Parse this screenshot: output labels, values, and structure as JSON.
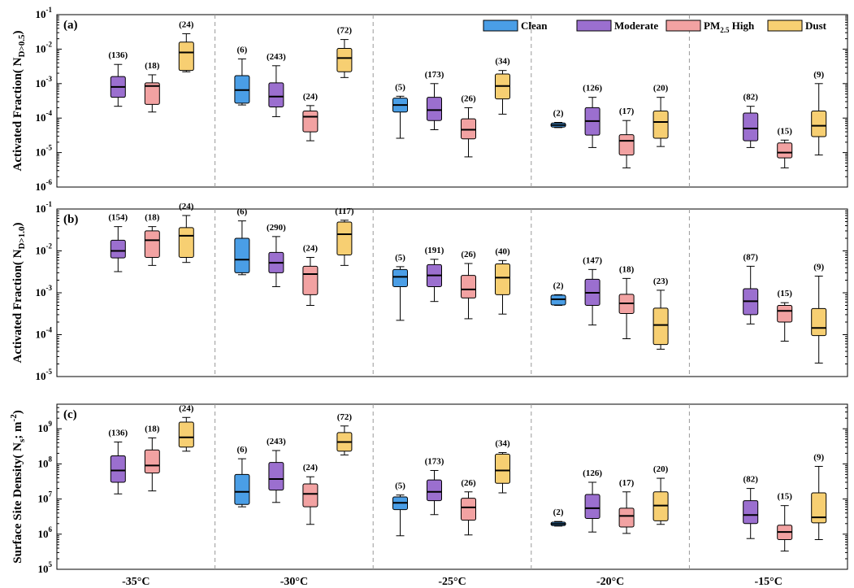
{
  "colors": {
    "Clean": "#4a9ee6",
    "Moderate": "#9b6fcf",
    "PM2.5 High": "#f2a2a2",
    "Dust": "#f7cf72"
  },
  "legend": [
    {
      "main": "Clean",
      "sub": "",
      "tail": ""
    },
    {
      "main": "Moderate",
      "sub": "",
      "tail": ""
    },
    {
      "main": "PM",
      "sub": "2.5",
      "tail": " High"
    },
    {
      "main": "Dust",
      "sub": "",
      "tail": ""
    }
  ],
  "chart_data": {
    "type": "box",
    "categories": [
      "-35°C",
      "-30°C",
      "-25°C",
      "-20°C",
      "-15°C"
    ],
    "series_names": [
      "Clean",
      "Moderate",
      "PM2.5 High",
      "Dust"
    ],
    "panels": [
      {
        "id": "a",
        "label": "(a)",
        "ylabel": {
          "main": "Activated Fraction( N",
          "sub": "D>0.5",
          "tail": ")"
        },
        "yscale": "log",
        "ylim": [
          1e-06,
          0.1
        ],
        "yticks": [
          {
            "base": "10",
            "exp": "-6"
          },
          {
            "base": "10",
            "exp": "-5"
          },
          {
            "base": "10",
            "exp": "-4"
          },
          {
            "base": "10",
            "exp": "-3"
          },
          {
            "base": "10",
            "exp": "-2"
          },
          {
            "base": "10",
            "exp": "-1"
          }
        ],
        "legend": "top-right",
        "groups": [
          {
            "category": "-35°C",
            "boxes": [
              {
                "series": "Moderate",
                "n": "(136)",
                "min": 0.00022,
                "q1": 0.0004,
                "median": 0.0008,
                "q3": 0.0016,
                "max": 0.0036
              },
              {
                "series": "PM2.5 High",
                "n": "(18)",
                "min": 0.00015,
                "q1": 0.00025,
                "median": 0.00085,
                "q3": 0.00105,
                "max": 0.0018
              },
              {
                "series": "Dust",
                "n": "(24)",
                "min": 0.0022,
                "q1": 0.0024,
                "median": 0.008,
                "q3": 0.016,
                "max": 0.028
              }
            ]
          },
          {
            "category": "-30°C",
            "boxes": [
              {
                "series": "Clean",
                "n": "(6)",
                "min": 0.00024,
                "q1": 0.00027,
                "median": 0.00065,
                "q3": 0.0017,
                "max": 0.0052
              },
              {
                "series": "Moderate",
                "n": "(243)",
                "min": 0.00011,
                "q1": 0.00021,
                "median": 0.00042,
                "q3": 0.00105,
                "max": 0.0033
              },
              {
                "series": "PM2.5 High",
                "n": "(24)",
                "min": 2.2e-05,
                "q1": 4e-05,
                "median": 0.00011,
                "q3": 0.00016,
                "max": 0.00023
              },
              {
                "series": "Dust",
                "n": "(72)",
                "min": 0.0015,
                "q1": 0.0022,
                "median": 0.0055,
                "q3": 0.0105,
                "max": 0.019
              }
            ]
          },
          {
            "category": "-25°C",
            "boxes": [
              {
                "series": "Clean",
                "n": "(5)",
                "min": 2.6e-05,
                "q1": 0.00015,
                "median": 0.00024,
                "q3": 0.00038,
                "max": 0.00043
              },
              {
                "series": "Moderate",
                "n": "(173)",
                "min": 4.6e-05,
                "q1": 8.5e-05,
                "median": 0.00017,
                "q3": 0.0004,
                "max": 0.001
              },
              {
                "series": "PM2.5 High",
                "n": "(26)",
                "min": 7.5e-06,
                "q1": 2.5e-05,
                "median": 4.6e-05,
                "q3": 9.5e-05,
                "max": 0.0002
              },
              {
                "series": "Dust",
                "n": "(34)",
                "min": 0.00013,
                "q1": 0.00036,
                "median": 0.00085,
                "q3": 0.0019,
                "max": 0.0024
              }
            ]
          },
          {
            "category": "-20°C",
            "boxes": [
              {
                "series": "Clean",
                "n": "(2)",
                "min": 5.3e-05,
                "q1": 5.5e-05,
                "median": 6.3e-05,
                "q3": 7.2e-05,
                "max": 7.5e-05
              },
              {
                "series": "Moderate",
                "n": "(126)",
                "min": 1.4e-05,
                "q1": 3.2e-05,
                "median": 8.2e-05,
                "q3": 0.0002,
                "max": 0.0004
              },
              {
                "series": "PM2.5 High",
                "n": "(17)",
                "min": 3.6e-06,
                "q1": 8.5e-06,
                "median": 2.2e-05,
                "q3": 3.3e-05,
                "max": 8.5e-05
              },
              {
                "series": "Dust",
                "n": "(20)",
                "min": 1.5e-05,
                "q1": 2.6e-05,
                "median": 7.7e-05,
                "q3": 0.00016,
                "max": 0.0004
              }
            ]
          },
          {
            "category": "-15°C",
            "boxes": [
              {
                "series": "Moderate",
                "n": "(82)",
                "min": 1.4e-05,
                "q1": 2.2e-05,
                "median": 5e-05,
                "q3": 0.00014,
                "max": 0.00022
              },
              {
                "series": "PM2.5 High",
                "n": "(15)",
                "min": 3.6e-06,
                "q1": 7e-06,
                "median": 1e-05,
                "q3": 1.9e-05,
                "max": 2.3e-05
              },
              {
                "series": "Dust",
                "n": "(9)",
                "min": 8.5e-06,
                "q1": 2.9e-05,
                "median": 6e-05,
                "q3": 0.00016,
                "max": 0.001
              }
            ]
          }
        ]
      },
      {
        "id": "b",
        "label": "(b)",
        "ylabel": {
          "main": "Activated Fraction( N",
          "sub": "D>1.0",
          "tail": ")"
        },
        "yscale": "log",
        "ylim": [
          1e-05,
          0.1
        ],
        "yticks": [
          {
            "base": "10",
            "exp": "-5"
          },
          {
            "base": "10",
            "exp": "-4"
          },
          {
            "base": "10",
            "exp": "-3"
          },
          {
            "base": "10",
            "exp": "-2"
          },
          {
            "base": "10",
            "exp": "-1"
          }
        ],
        "groups": [
          {
            "category": "-35°C",
            "boxes": [
              {
                "series": "Moderate",
                "n": "(154)",
                "min": 0.0032,
                "q1": 0.0068,
                "median": 0.01,
                "q3": 0.018,
                "max": 0.038
              },
              {
                "series": "PM2.5 High",
                "n": "(18)",
                "min": 0.0045,
                "q1": 0.007,
                "median": 0.018,
                "q3": 0.03,
                "max": 0.038
              },
              {
                "series": "Dust",
                "n": "(24)",
                "min": 0.0053,
                "q1": 0.007,
                "median": 0.023,
                "q3": 0.036,
                "max": 0.07
              }
            ]
          },
          {
            "category": "-30°C",
            "boxes": [
              {
                "series": "Clean",
                "n": "(6)",
                "min": 0.0027,
                "q1": 0.003,
                "median": 0.0062,
                "q3": 0.02,
                "max": 0.052
              },
              {
                "series": "Moderate",
                "n": "(290)",
                "min": 0.0014,
                "q1": 0.003,
                "median": 0.0052,
                "q3": 0.0092,
                "max": 0.022
              },
              {
                "series": "PM2.5 High",
                "n": "(24)",
                "min": 0.0005,
                "q1": 0.0009,
                "median": 0.0028,
                "q3": 0.0043,
                "max": 0.007
              },
              {
                "series": "Dust",
                "n": "(117)",
                "min": 0.0045,
                "q1": 0.008,
                "median": 0.025,
                "q3": 0.049,
                "max": 0.054
              }
            ]
          },
          {
            "category": "-25°C",
            "boxes": [
              {
                "series": "Clean",
                "n": "(5)",
                "min": 0.00022,
                "q1": 0.0014,
                "median": 0.0024,
                "q3": 0.0036,
                "max": 0.0042
              },
              {
                "series": "Moderate",
                "n": "(191)",
                "min": 0.00062,
                "q1": 0.0014,
                "median": 0.0026,
                "q3": 0.0047,
                "max": 0.0063
              },
              {
                "series": "PM2.5 High",
                "n": "(26)",
                "min": 0.00024,
                "q1": 0.00075,
                "median": 0.0012,
                "q3": 0.0026,
                "max": 0.005
              },
              {
                "series": "Dust",
                "n": "(40)",
                "min": 0.00031,
                "q1": 0.0009,
                "median": 0.0023,
                "q3": 0.0049,
                "max": 0.0059
              }
            ]
          },
          {
            "category": "-20°C",
            "boxes": [
              {
                "series": "Clean",
                "n": "(2)",
                "min": 0.0005,
                "q1": 0.00051,
                "median": 0.0007,
                "q3": 0.00088,
                "max": 0.0009
              },
              {
                "series": "Moderate",
                "n": "(147)",
                "min": 0.00017,
                "q1": 0.0005,
                "median": 0.001,
                "q3": 0.0021,
                "max": 0.0036
              },
              {
                "series": "PM2.5 High",
                "n": "(18)",
                "min": 8e-05,
                "q1": 0.00032,
                "median": 0.00056,
                "q3": 0.00092,
                "max": 0.0022
              },
              {
                "series": "Dust",
                "n": "(23)",
                "min": 4.5e-05,
                "q1": 5.8e-05,
                "median": 0.00017,
                "q3": 0.00043,
                "max": 0.00115
              }
            ]
          },
          {
            "category": "-15°C",
            "boxes": [
              {
                "series": "Moderate",
                "n": "(87)",
                "min": 0.00018,
                "q1": 0.0003,
                "median": 0.00063,
                "q3": 0.00125,
                "max": 0.0043
              },
              {
                "series": "PM2.5 High",
                "n": "(15)",
                "min": 7e-05,
                "q1": 0.0002,
                "median": 0.00037,
                "q3": 0.0005,
                "max": 0.00058
              },
              {
                "series": "Dust",
                "n": "(9)",
                "min": 2.1e-05,
                "q1": 9.5e-05,
                "median": 0.000145,
                "q3": 0.00042,
                "max": 0.0025
              }
            ]
          }
        ]
      },
      {
        "id": "c",
        "label": "(c)",
        "ylabel": {
          "main": "Surface Site Density( N",
          "sub": "s",
          "tail": "; m",
          "sup": "-2",
          "tail2": ")"
        },
        "yscale": "log",
        "ylim": [
          100000.0,
          5000000000.0
        ],
        "yticks": [
          {
            "base": "10",
            "exp": "5"
          },
          {
            "base": "10",
            "exp": "6"
          },
          {
            "base": "10",
            "exp": "7"
          },
          {
            "base": "10",
            "exp": "8"
          },
          {
            "base": "10",
            "exp": "9"
          }
        ],
        "groups": [
          {
            "category": "-35°C",
            "boxes": [
              {
                "series": "Moderate",
                "n": "(136)",
                "min": 14000000.0,
                "q1": 30000000.0,
                "median": 65000000.0,
                "q3": 170000000.0,
                "max": 420000000.0
              },
              {
                "series": "PM2.5 High",
                "n": "(18)",
                "min": 17000000.0,
                "q1": 55000000.0,
                "median": 90000000.0,
                "q3": 250000000.0,
                "max": 550000000.0
              },
              {
                "series": "Dust",
                "n": "(24)",
                "min": 230000000.0,
                "q1": 300000000.0,
                "median": 570000000.0,
                "q3": 1550000000.0,
                "max": 2100000000.0
              }
            ]
          },
          {
            "category": "-30°C",
            "boxes": [
              {
                "series": "Clean",
                "n": "(6)",
                "min": 6000000.0,
                "q1": 7000000.0,
                "median": 16000000.0,
                "q3": 50000000.0,
                "max": 140000000.0
              },
              {
                "series": "Moderate",
                "n": "(243)",
                "min": 8000000.0,
                "q1": 18000000.0,
                "median": 37000000.0,
                "q3": 110000000.0,
                "max": 240000000.0
              },
              {
                "series": "PM2.5 High",
                "n": "(24)",
                "min": 1900000.0,
                "q1": 6000000.0,
                "median": 14000000.0,
                "q3": 27000000.0,
                "max": 43000000.0
              },
              {
                "series": "Dust",
                "n": "(72)",
                "min": 180000000.0,
                "q1": 230000000.0,
                "median": 420000000.0,
                "q3": 780000000.0,
                "max": 1200000000.0
              }
            ]
          },
          {
            "category": "-25°C",
            "boxes": [
              {
                "series": "Clean",
                "n": "(5)",
                "min": 900000.0,
                "q1": 5000000.0,
                "median": 7800000.0,
                "q3": 11500000.0,
                "max": 13000000.0
              },
              {
                "series": "Moderate",
                "n": "(173)",
                "min": 3600000.0,
                "q1": 9000000.0,
                "median": 16000000.0,
                "q3": 35000000.0,
                "max": 65000000.0
              },
              {
                "series": "PM2.5 High",
                "n": "(26)",
                "min": 950000.0,
                "q1": 2500000.0,
                "median": 5800000.0,
                "q3": 10500000.0,
                "max": 16000000.0
              },
              {
                "series": "Dust",
                "n": "(34)",
                "min": 15000000.0,
                "q1": 28000000.0,
                "median": 65000000.0,
                "q3": 190000000.0,
                "max": 210000000.0
              }
            ]
          },
          {
            "category": "-20°C",
            "boxes": [
              {
                "series": "Clean",
                "n": "(2)",
                "min": 1700000.0,
                "q1": 1750000.0,
                "median": 1950000.0,
                "q3": 2200000.0,
                "max": 2300000.0
              },
              {
                "series": "Moderate",
                "n": "(126)",
                "min": 1150000.0,
                "q1": 2800000.0,
                "median": 5500000.0,
                "q3": 13500000.0,
                "max": 30000000.0
              },
              {
                "series": "PM2.5 High",
                "n": "(17)",
                "min": 1050000.0,
                "q1": 1600000.0,
                "median": 3300000.0,
                "q3": 5500000.0,
                "max": 16000000.0
              },
              {
                "series": "Dust",
                "n": "(20)",
                "min": 1900000.0,
                "q1": 2400000.0,
                "median": 6500000.0,
                "q3": 16000000.0,
                "max": 39000000.0
              }
            ]
          },
          {
            "category": "-15°C",
            "boxes": [
              {
                "series": "Moderate",
                "n": "(82)",
                "min": 750000.0,
                "q1": 2000000.0,
                "median": 3500000.0,
                "q3": 9000000.0,
                "max": 20000000.0
              },
              {
                "series": "PM2.5 High",
                "n": "(15)",
                "min": 330000.0,
                "q1": 700000.0,
                "median": 1150000.0,
                "q3": 1800000.0,
                "max": 6500000.0
              },
              {
                "series": "Dust",
                "n": "(9)",
                "min": 700000.0,
                "q1": 2100000.0,
                "median": 3000000.0,
                "q3": 15000000.0,
                "max": 85000000.0
              }
            ]
          }
        ]
      }
    ]
  }
}
